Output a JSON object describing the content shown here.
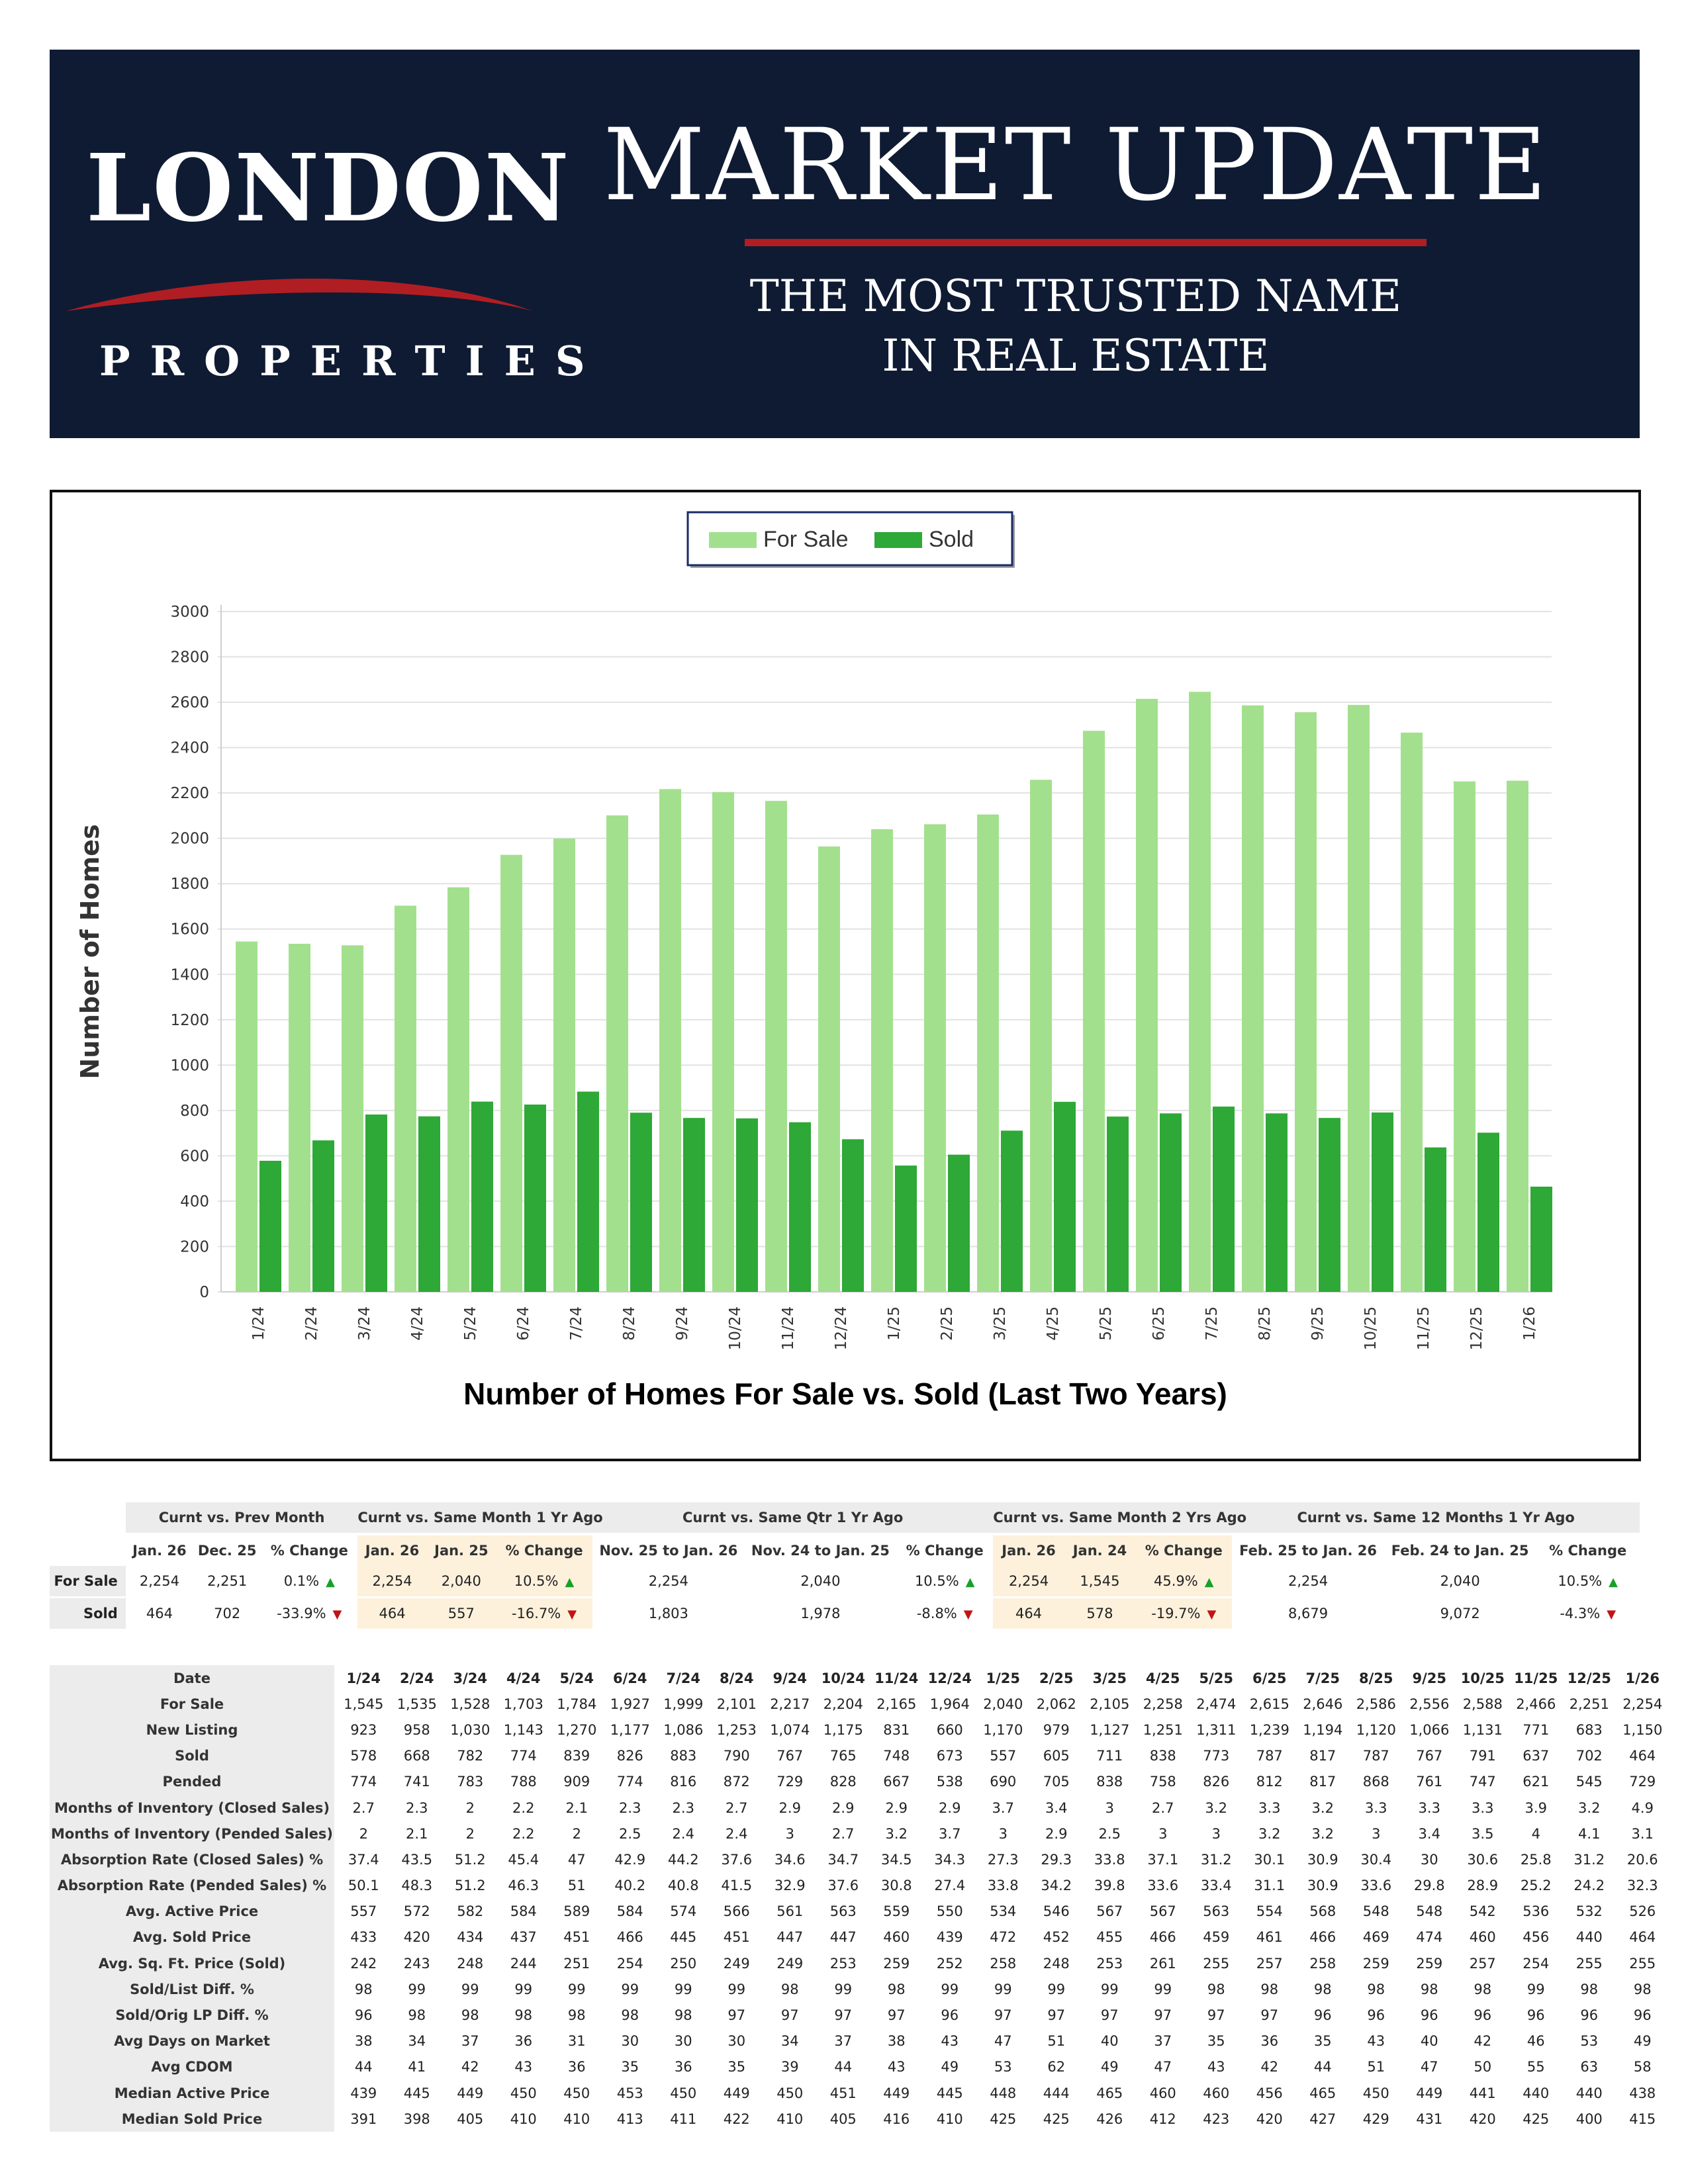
{
  "header": {
    "logo_main": "LONDON",
    "logo_sub": "PROPERTIES",
    "title": "MARKET UPDATE",
    "tagline_line1": "THE MOST TRUSTED NAME",
    "tagline_line2": "IN REAL ESTATE",
    "colors": {
      "background": "#0f1b33",
      "accent": "#b01e23",
      "text": "#ffffff"
    }
  },
  "chart_data": {
    "type": "bar",
    "title": "Number of Homes For Sale vs. Sold (Last Two Years)",
    "xlabel": "",
    "ylabel": "Number of Homes",
    "ylim": [
      0,
      3000
    ],
    "yticks": [
      0,
      200,
      400,
      600,
      800,
      1000,
      1200,
      1400,
      1600,
      1800,
      2000,
      2200,
      2400,
      2600,
      2800,
      3000
    ],
    "grid": true,
    "legend_position": "top-center",
    "categories": [
      "1/24",
      "2/24",
      "3/24",
      "4/24",
      "5/24",
      "6/24",
      "7/24",
      "8/24",
      "9/24",
      "10/24",
      "11/24",
      "12/24",
      "1/25",
      "2/25",
      "3/25",
      "4/25",
      "5/25",
      "6/25",
      "7/25",
      "8/25",
      "9/25",
      "10/25",
      "11/25",
      "12/25",
      "1/26"
    ],
    "series": [
      {
        "name": "For Sale",
        "color": "#a3e08e",
        "values": [
          1545,
          1535,
          1528,
          1703,
          1784,
          1927,
          1999,
          2101,
          2217,
          2204,
          2165,
          1964,
          2040,
          2062,
          2105,
          2258,
          2474,
          2615,
          2646,
          2586,
          2556,
          2588,
          2466,
          2251,
          2254
        ]
      },
      {
        "name": "Sold",
        "color": "#2ea836",
        "values": [
          578,
          668,
          782,
          774,
          839,
          826,
          883,
          790,
          767,
          765,
          748,
          673,
          557,
          605,
          711,
          838,
          773,
          787,
          817,
          787,
          767,
          791,
          637,
          702,
          464
        ]
      }
    ]
  },
  "comparison": {
    "groups": [
      {
        "label": "Curnt vs. Prev Month",
        "highlight": false,
        "cols": [
          "Jan. 26",
          "Dec. 25",
          "% Change"
        ]
      },
      {
        "label": "Curnt vs. Same Month 1 Yr Ago",
        "highlight": true,
        "cols": [
          "Jan. 26",
          "Jan. 25",
          "% Change"
        ]
      },
      {
        "label": "Curnt vs. Same Qtr 1 Yr Ago",
        "highlight": false,
        "cols": [
          "Nov. 25 to Jan. 26",
          "Nov. 24 to Jan. 25",
          "% Change"
        ]
      },
      {
        "label": "Curnt vs. Same Month 2 Yrs Ago",
        "highlight": true,
        "cols": [
          "Jan. 26",
          "Jan. 24",
          "% Change"
        ]
      },
      {
        "label": "Curnt vs. Same 12 Months 1 Yr Ago",
        "highlight": false,
        "cols": [
          "Feb. 25 to Jan. 26",
          "Feb. 24 to Jan. 25",
          "% Change"
        ]
      }
    ],
    "rows": [
      {
        "label": "For Sale",
        "cells": [
          [
            "2,254",
            "2,251",
            "0.1%",
            "up"
          ],
          [
            "2,254",
            "2,040",
            "10.5%",
            "up"
          ],
          [
            "2,254",
            "2,040",
            "10.5%",
            "up"
          ],
          [
            "2,254",
            "1,545",
            "45.9%",
            "up"
          ],
          [
            "2,254",
            "2,040",
            "10.5%",
            "up"
          ]
        ]
      },
      {
        "label": "Sold",
        "cells": [
          [
            "464",
            "702",
            "-33.9%",
            "down"
          ],
          [
            "464",
            "557",
            "-16.7%",
            "down"
          ],
          [
            "1,803",
            "1,978",
            "-8.8%",
            "down"
          ],
          [
            "464",
            "578",
            "-19.7%",
            "down"
          ],
          [
            "8,679",
            "9,072",
            "-4.3%",
            "down"
          ]
        ]
      }
    ]
  },
  "stats": {
    "header_label": "Date",
    "dates": [
      "1/24",
      "2/24",
      "3/24",
      "4/24",
      "5/24",
      "6/24",
      "7/24",
      "8/24",
      "9/24",
      "10/24",
      "11/24",
      "12/24",
      "1/25",
      "2/25",
      "3/25",
      "4/25",
      "5/25",
      "6/25",
      "7/25",
      "8/25",
      "9/25",
      "10/25",
      "11/25",
      "12/25",
      "1/26"
    ],
    "rows": [
      {
        "label": "For Sale",
        "values": [
          "1,545",
          "1,535",
          "1,528",
          "1,703",
          "1,784",
          "1,927",
          "1,999",
          "2,101",
          "2,217",
          "2,204",
          "2,165",
          "1,964",
          "2,040",
          "2,062",
          "2,105",
          "2,258",
          "2,474",
          "2,615",
          "2,646",
          "2,586",
          "2,556",
          "2,588",
          "2,466",
          "2,251",
          "2,254"
        ]
      },
      {
        "label": "New Listing",
        "values": [
          "923",
          "958",
          "1,030",
          "1,143",
          "1,270",
          "1,177",
          "1,086",
          "1,253",
          "1,074",
          "1,175",
          "831",
          "660",
          "1,170",
          "979",
          "1,127",
          "1,251",
          "1,311",
          "1,239",
          "1,194",
          "1,120",
          "1,066",
          "1,131",
          "771",
          "683",
          "1,150"
        ]
      },
      {
        "label": "Sold",
        "values": [
          "578",
          "668",
          "782",
          "774",
          "839",
          "826",
          "883",
          "790",
          "767",
          "765",
          "748",
          "673",
          "557",
          "605",
          "711",
          "838",
          "773",
          "787",
          "817",
          "787",
          "767",
          "791",
          "637",
          "702",
          "464"
        ]
      },
      {
        "label": "Pended",
        "values": [
          "774",
          "741",
          "783",
          "788",
          "909",
          "774",
          "816",
          "872",
          "729",
          "828",
          "667",
          "538",
          "690",
          "705",
          "838",
          "758",
          "826",
          "812",
          "817",
          "868",
          "761",
          "747",
          "621",
          "545",
          "729"
        ]
      },
      {
        "label": "Months of Inventory (Closed Sales)",
        "values": [
          "2.7",
          "2.3",
          "2",
          "2.2",
          "2.1",
          "2.3",
          "2.3",
          "2.7",
          "2.9",
          "2.9",
          "2.9",
          "2.9",
          "3.7",
          "3.4",
          "3",
          "2.7",
          "3.2",
          "3.3",
          "3.2",
          "3.3",
          "3.3",
          "3.3",
          "3.9",
          "3.2",
          "4.9"
        ]
      },
      {
        "label": "Months of Inventory (Pended Sales)",
        "values": [
          "2",
          "2.1",
          "2",
          "2.2",
          "2",
          "2.5",
          "2.4",
          "2.4",
          "3",
          "2.7",
          "3.2",
          "3.7",
          "3",
          "2.9",
          "2.5",
          "3",
          "3",
          "3.2",
          "3.2",
          "3",
          "3.4",
          "3.5",
          "4",
          "4.1",
          "3.1"
        ]
      },
      {
        "label": "Absorption Rate (Closed Sales) %",
        "values": [
          "37.4",
          "43.5",
          "51.2",
          "45.4",
          "47",
          "42.9",
          "44.2",
          "37.6",
          "34.6",
          "34.7",
          "34.5",
          "34.3",
          "27.3",
          "29.3",
          "33.8",
          "37.1",
          "31.2",
          "30.1",
          "30.9",
          "30.4",
          "30",
          "30.6",
          "25.8",
          "31.2",
          "20.6"
        ]
      },
      {
        "label": "Absorption Rate (Pended Sales) %",
        "values": [
          "50.1",
          "48.3",
          "51.2",
          "46.3",
          "51",
          "40.2",
          "40.8",
          "41.5",
          "32.9",
          "37.6",
          "30.8",
          "27.4",
          "33.8",
          "34.2",
          "39.8",
          "33.6",
          "33.4",
          "31.1",
          "30.9",
          "33.6",
          "29.8",
          "28.9",
          "25.2",
          "24.2",
          "32.3"
        ]
      },
      {
        "label": "Avg. Active Price",
        "values": [
          "557",
          "572",
          "582",
          "584",
          "589",
          "584",
          "574",
          "566",
          "561",
          "563",
          "559",
          "550",
          "534",
          "546",
          "567",
          "567",
          "563",
          "554",
          "568",
          "548",
          "548",
          "542",
          "536",
          "532",
          "526"
        ]
      },
      {
        "label": "Avg. Sold Price",
        "values": [
          "433",
          "420",
          "434",
          "437",
          "451",
          "466",
          "445",
          "451",
          "447",
          "447",
          "460",
          "439",
          "472",
          "452",
          "455",
          "466",
          "459",
          "461",
          "466",
          "469",
          "474",
          "460",
          "456",
          "440",
          "464"
        ]
      },
      {
        "label": "Avg. Sq. Ft. Price (Sold)",
        "values": [
          "242",
          "243",
          "248",
          "244",
          "251",
          "254",
          "250",
          "249",
          "249",
          "253",
          "259",
          "252",
          "258",
          "248",
          "253",
          "261",
          "255",
          "257",
          "258",
          "259",
          "259",
          "257",
          "254",
          "255",
          "255"
        ]
      },
      {
        "label": "Sold/List Diff. %",
        "values": [
          "98",
          "99",
          "99",
          "99",
          "99",
          "99",
          "99",
          "99",
          "98",
          "99",
          "98",
          "99",
          "99",
          "99",
          "99",
          "99",
          "98",
          "98",
          "98",
          "98",
          "98",
          "98",
          "99",
          "98",
          "98"
        ]
      },
      {
        "label": "Sold/Orig LP Diff. %",
        "values": [
          "96",
          "98",
          "98",
          "98",
          "98",
          "98",
          "98",
          "97",
          "97",
          "97",
          "97",
          "96",
          "97",
          "97",
          "97",
          "97",
          "97",
          "97",
          "96",
          "96",
          "96",
          "96",
          "96",
          "96",
          "96"
        ]
      },
      {
        "label": "Avg Days on Market",
        "values": [
          "38",
          "34",
          "37",
          "36",
          "31",
          "30",
          "30",
          "30",
          "34",
          "37",
          "38",
          "43",
          "47",
          "51",
          "40",
          "37",
          "35",
          "36",
          "35",
          "43",
          "40",
          "42",
          "46",
          "53",
          "49"
        ]
      },
      {
        "label": "Avg CDOM",
        "values": [
          "44",
          "41",
          "42",
          "43",
          "36",
          "35",
          "36",
          "35",
          "39",
          "44",
          "43",
          "49",
          "53",
          "62",
          "49",
          "47",
          "43",
          "42",
          "44",
          "51",
          "47",
          "50",
          "55",
          "63",
          "58"
        ]
      },
      {
        "label": "Median Active Price",
        "values": [
          "439",
          "445",
          "449",
          "450",
          "450",
          "453",
          "450",
          "449",
          "450",
          "451",
          "449",
          "445",
          "448",
          "444",
          "465",
          "460",
          "460",
          "456",
          "465",
          "450",
          "449",
          "441",
          "440",
          "440",
          "438"
        ]
      },
      {
        "label": "Median Sold Price",
        "values": [
          "391",
          "398",
          "405",
          "410",
          "410",
          "413",
          "411",
          "422",
          "410",
          "405",
          "416",
          "410",
          "425",
          "425",
          "426",
          "412",
          "423",
          "420",
          "427",
          "429",
          "431",
          "420",
          "425",
          "400",
          "415"
        ]
      }
    ]
  }
}
